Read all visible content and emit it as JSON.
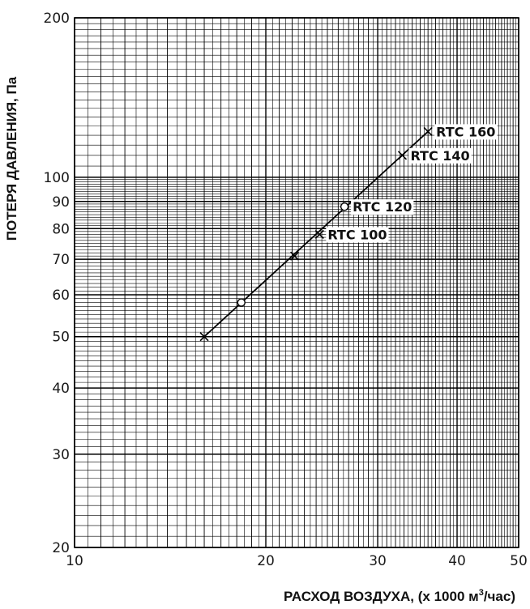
{
  "chart_data": {
    "type": "line",
    "title": "",
    "xlabel": "РАСХОД ВОЗДУХА,  (x 1000 м",
    "xlabel_sup": "3",
    "xlabel_tail": "/час)",
    "ylabel": "ПОТЕРЯ ДАВЛЕНИЯ, Па",
    "x_scale": "log",
    "y_scale": "log",
    "xlim": [
      10,
      50
    ],
    "ylim": [
      20,
      200
    ],
    "x_ticks": [
      10,
      20,
      30,
      40,
      50
    ],
    "y_ticks": [
      20,
      30,
      40,
      50,
      60,
      70,
      80,
      90,
      100,
      200
    ],
    "grid": true,
    "series": [
      {
        "x": [
          16.0,
          36.0
        ],
        "y": [
          50,
          122
        ]
      }
    ],
    "markers": [
      {
        "x": 16.0,
        "y": 50,
        "shape": "x"
      },
      {
        "x": 18.3,
        "y": 58,
        "shape": "circle"
      },
      {
        "x": 22.2,
        "y": 71,
        "shape": "x"
      },
      {
        "x": 24.3,
        "y": 78,
        "shape": "x"
      },
      {
        "x": 26.6,
        "y": 88,
        "shape": "circle"
      },
      {
        "x": 32.8,
        "y": 110,
        "shape": "x"
      },
      {
        "x": 36.0,
        "y": 122,
        "shape": "x"
      }
    ],
    "annotations": [
      {
        "text": "RTC 100",
        "x": 24.3,
        "y": 78
      },
      {
        "text": "RTC 120",
        "x": 26.6,
        "y": 88
      },
      {
        "text": "RTC 140",
        "x": 32.8,
        "y": 110
      },
      {
        "text": "RTC 160",
        "x": 36.0,
        "y": 122
      }
    ]
  }
}
